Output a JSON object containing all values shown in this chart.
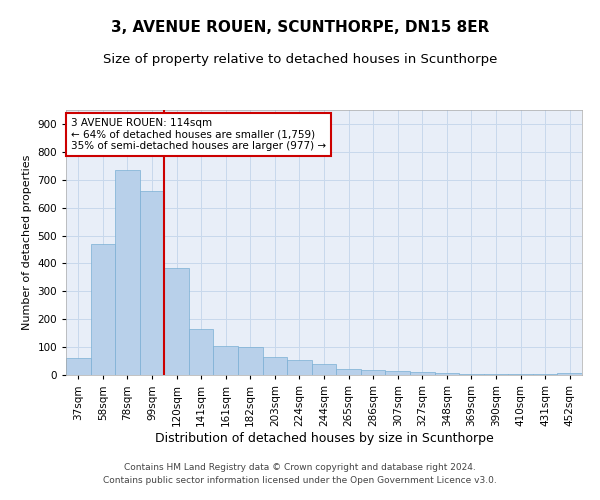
{
  "title": "3, AVENUE ROUEN, SCUNTHORPE, DN15 8ER",
  "subtitle": "Size of property relative to detached houses in Scunthorpe",
  "xlabel": "Distribution of detached houses by size in Scunthorpe",
  "ylabel": "Number of detached properties",
  "categories": [
    "37sqm",
    "58sqm",
    "78sqm",
    "99sqm",
    "120sqm",
    "141sqm",
    "161sqm",
    "182sqm",
    "203sqm",
    "224sqm",
    "244sqm",
    "265sqm",
    "286sqm",
    "307sqm",
    "327sqm",
    "348sqm",
    "369sqm",
    "390sqm",
    "410sqm",
    "431sqm",
    "452sqm"
  ],
  "values": [
    62,
    470,
    735,
    660,
    385,
    165,
    105,
    100,
    65,
    52,
    38,
    20,
    18,
    14,
    10,
    7,
    5,
    3,
    3,
    3,
    7
  ],
  "bar_color": "#b8d0ea",
  "bar_edge_color": "#7aafd4",
  "vline_x": 3.5,
  "vline_color": "#cc0000",
  "annotation_text": "3 AVENUE ROUEN: 114sqm\n← 64% of detached houses are smaller (1,759)\n35% of semi-detached houses are larger (977) →",
  "annotation_box_color": "#ffffff",
  "annotation_box_edge": "#cc0000",
  "ylim": [
    0,
    950
  ],
  "yticks": [
    0,
    100,
    200,
    300,
    400,
    500,
    600,
    700,
    800,
    900
  ],
  "title_fontsize": 11,
  "subtitle_fontsize": 9.5,
  "xlabel_fontsize": 9,
  "ylabel_fontsize": 8,
  "tick_fontsize": 7.5,
  "annotation_fontsize": 7.5,
  "footer1": "Contains HM Land Registry data © Crown copyright and database right 2024.",
  "footer2": "Contains public sector information licensed under the Open Government Licence v3.0.",
  "background_color": "#ffffff",
  "grid_color": "#c8d8ec",
  "plot_bg_color": "#e8eef8"
}
